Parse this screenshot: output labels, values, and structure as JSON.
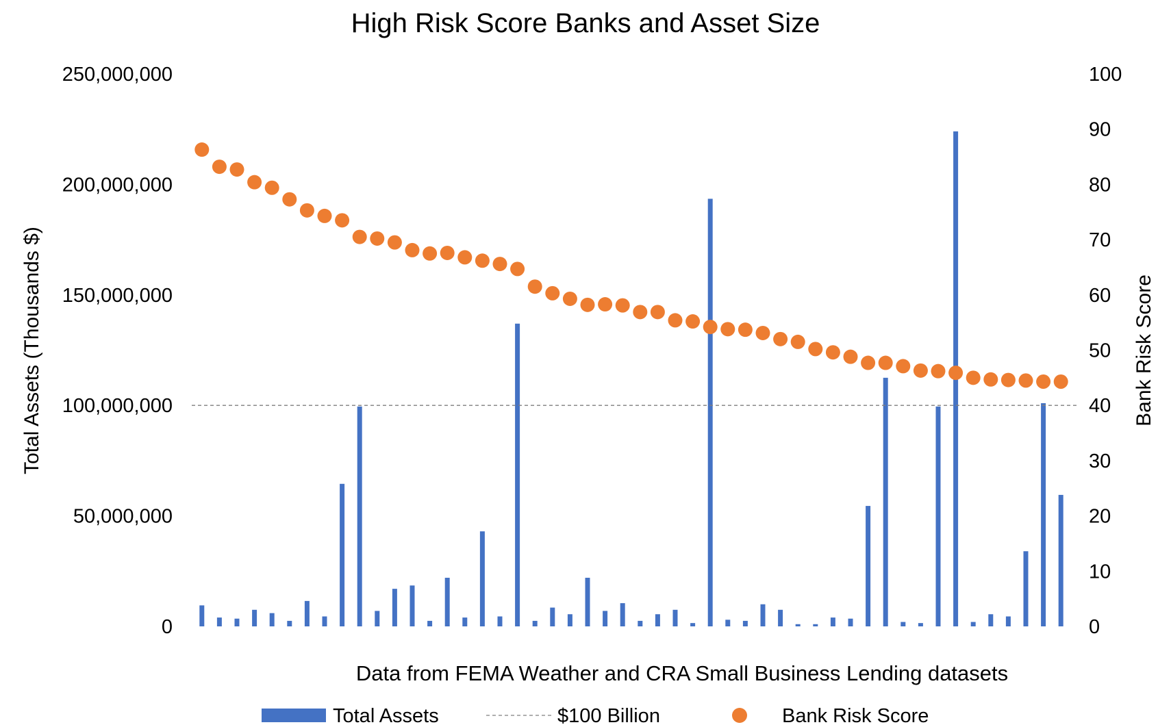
{
  "chart_data": {
    "type": "bar",
    "title": "High Risk Score Banks and Asset Size",
    "xlabel": "Data from FEMA Weather and CRA Small Business Lending datasets",
    "ylabel": "Total Assets (Thousands $)",
    "y2label": "Bank Risk Score",
    "ylim": [
      0,
      250000000
    ],
    "y2lim": [
      0,
      100
    ],
    "yticks": [
      "0",
      "50,000,000",
      "100,000,000",
      "150,000,000",
      "200,000,000",
      "250,000,000"
    ],
    "y2ticks": [
      "0",
      "10",
      "20",
      "30",
      "40",
      "50",
      "60",
      "70",
      "80",
      "90",
      "100"
    ],
    "grid": false,
    "legend_position": "bottom",
    "reference_line": {
      "name": "$100 Billion",
      "value": 100000000,
      "style": "dashed",
      "color": "#7f7f7f"
    },
    "series": [
      {
        "name": "Total Assets",
        "type": "bar",
        "axis": "left",
        "color": "#4472C4",
        "values": [
          9500000,
          4000000,
          3500000,
          7500000,
          6000000,
          2500000,
          11500000,
          4500000,
          64500000,
          99500000,
          7000000,
          17000000,
          18500000,
          2500000,
          22000000,
          4000000,
          43000000,
          4500000,
          137000000,
          2500000,
          8500000,
          5500000,
          22000000,
          7000000,
          10500000,
          2500000,
          5500000,
          7500000,
          1500000,
          193500000,
          3000000,
          2500000,
          10000000,
          7500000,
          1000000,
          1000000,
          4000000,
          3500000,
          54500000,
          112500000,
          2000000,
          1500000,
          99500000,
          224000000,
          2000000,
          5500000,
          4500000,
          34000000,
          101000000,
          59500000
        ]
      },
      {
        "name": "Bank Risk Score",
        "type": "scatter",
        "axis": "right",
        "color": "#ED7D31",
        "values": [
          86.3,
          83.2,
          82.7,
          80.4,
          79.4,
          77.3,
          75.3,
          74.3,
          73.5,
          70.5,
          70.2,
          69.5,
          68.1,
          67.5,
          67.6,
          66.8,
          66.2,
          65.6,
          64.7,
          61.5,
          60.3,
          59.3,
          58.2,
          58.3,
          58.1,
          56.9,
          56.9,
          55.4,
          55.2,
          54.2,
          53.8,
          53.7,
          53.1,
          52.0,
          51.5,
          50.2,
          49.6,
          48.8,
          47.7,
          47.7,
          47.1,
          46.3,
          46.2,
          45.9,
          45.0,
          44.7,
          44.6,
          44.5,
          44.3,
          44.3
        ]
      }
    ]
  },
  "legend": {
    "bars_label": "Total Assets",
    "line_label": "$100 Billion",
    "dots_label": "Bank Risk Score"
  }
}
